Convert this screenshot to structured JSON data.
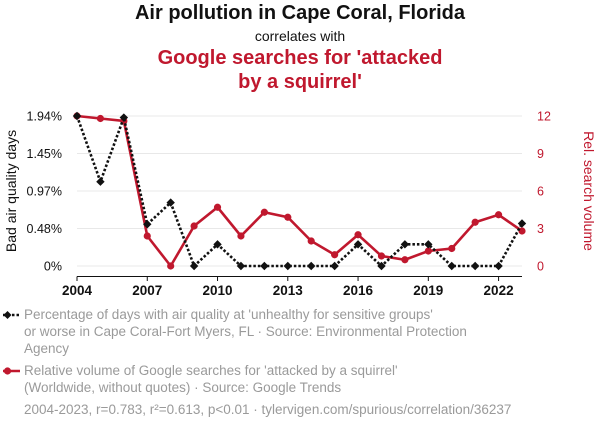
{
  "header": {
    "title": "Air pollution in Cape Coral, Florida",
    "correlates": "correlates with",
    "title2_line1": "Google searches for 'attacked",
    "title2_line2": "by a squirrel'"
  },
  "colors": {
    "series1": "#111111",
    "series2": "#c0182e",
    "grid": "#e8e8e8",
    "legend_text": "#9a9a9a"
  },
  "chart_data": {
    "type": "line",
    "x": [
      2004,
      2005,
      2006,
      2007,
      2008,
      2009,
      2010,
      2011,
      2012,
      2013,
      2014,
      2015,
      2016,
      2017,
      2018,
      2019,
      2020,
      2021,
      2022,
      2023
    ],
    "x_ticks": [
      "2004",
      "2007",
      "2010",
      "2013",
      "2016",
      "2019",
      "2022"
    ],
    "y_left_ticks": [
      "0%",
      "0.48%",
      "0.97%",
      "1.45%",
      "1.94%"
    ],
    "y_right_ticks": [
      "0",
      "3",
      "6",
      "9",
      "12"
    ],
    "ylabel_left": "Bad air quality days",
    "ylabel_right": "Rel. search volume",
    "ylim_left": [
      0,
      1.94
    ],
    "ylim_right": [
      0,
      12
    ],
    "grid": true,
    "series": [
      {
        "axis": "left",
        "style": "dotted",
        "values": [
          1.94,
          1.09,
          1.92,
          0.54,
          0.82,
          0,
          0.28,
          0,
          0,
          0,
          0,
          0,
          0.28,
          0,
          0.28,
          0.28,
          0,
          0,
          0,
          0.55
        ]
      },
      {
        "axis": "right",
        "style": "solid",
        "values": [
          12,
          11.8,
          11.6,
          2.4,
          0,
          3.2,
          4.7,
          2.4,
          4.3,
          3.9,
          2,
          0.9,
          2.5,
          0.8,
          0.5,
          1.2,
          1.4,
          3.5,
          4.1,
          2.8
        ]
      }
    ]
  },
  "legend": {
    "item1_line1": "Percentage of days with air quality at 'unhealthy for sensitive groups'",
    "item1_line2": "or worse in Cape Coral-Fort Myers, FL · Source: Environmental Protection",
    "item1_line3": "Agency",
    "item2_line1": "Relative volume of Google searches for 'attacked by a squirrel'",
    "item2_line2": "(Worldwide, without quotes) · Source: Google Trends"
  },
  "footer": "2004-2023, r=0.783, r²=0.613, p<0.01 · tylervigen.com/spurious/correlation/36237"
}
